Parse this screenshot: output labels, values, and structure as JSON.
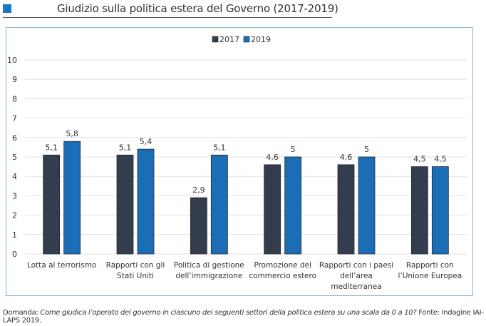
{
  "header": {
    "title": "Giudizio sulla politica estera del Governo (2017-2019)",
    "accent_color": "#1b75c8"
  },
  "footer": {
    "prefix": "Domanda: ",
    "question": "Come giudica l’operato del governo in ciascuno dei seguenti settori della politica estera su una scala da 0 a 10?",
    "source": " Fonte: Indagine IAI-LAPS 2019."
  },
  "chart_data": {
    "type": "bar",
    "title": "",
    "xlabel": "",
    "ylabel": "",
    "ylim": [
      0,
      10
    ],
    "yticks": [
      "0",
      "1",
      "2",
      "3",
      "4",
      "5",
      "6",
      "7",
      "8",
      "9",
      "10"
    ],
    "grid": true,
    "legend_position": "top-center",
    "categories": [
      [
        "Lotta al terrorismo"
      ],
      [
        "Rapporti con gli",
        "Stati Uniti"
      ],
      [
        "Politica di gestione",
        "dell’immigrazione"
      ],
      [
        "Promozione del",
        "commercio estero"
      ],
      [
        "Rapporti con i paesi",
        "dell’area",
        "mediterranea"
      ],
      [
        "Rapporti con",
        "l’Unione Europea"
      ]
    ],
    "series": [
      {
        "name": "2017",
        "color": "#333d4d",
        "values": [
          5.1,
          5.1,
          2.9,
          4.6,
          4.6,
          4.5
        ],
        "labels": [
          "5,1",
          "5,1",
          "2,9",
          "4,6",
          "4,6",
          "4,5"
        ]
      },
      {
        "name": "2019",
        "color": "#1b6db5",
        "values": [
          5.8,
          5.4,
          5.1,
          5.0,
          5.0,
          4.5
        ],
        "labels": [
          "5,8",
          "5,4",
          "5,1",
          "5",
          "5",
          "4,5"
        ]
      }
    ]
  }
}
